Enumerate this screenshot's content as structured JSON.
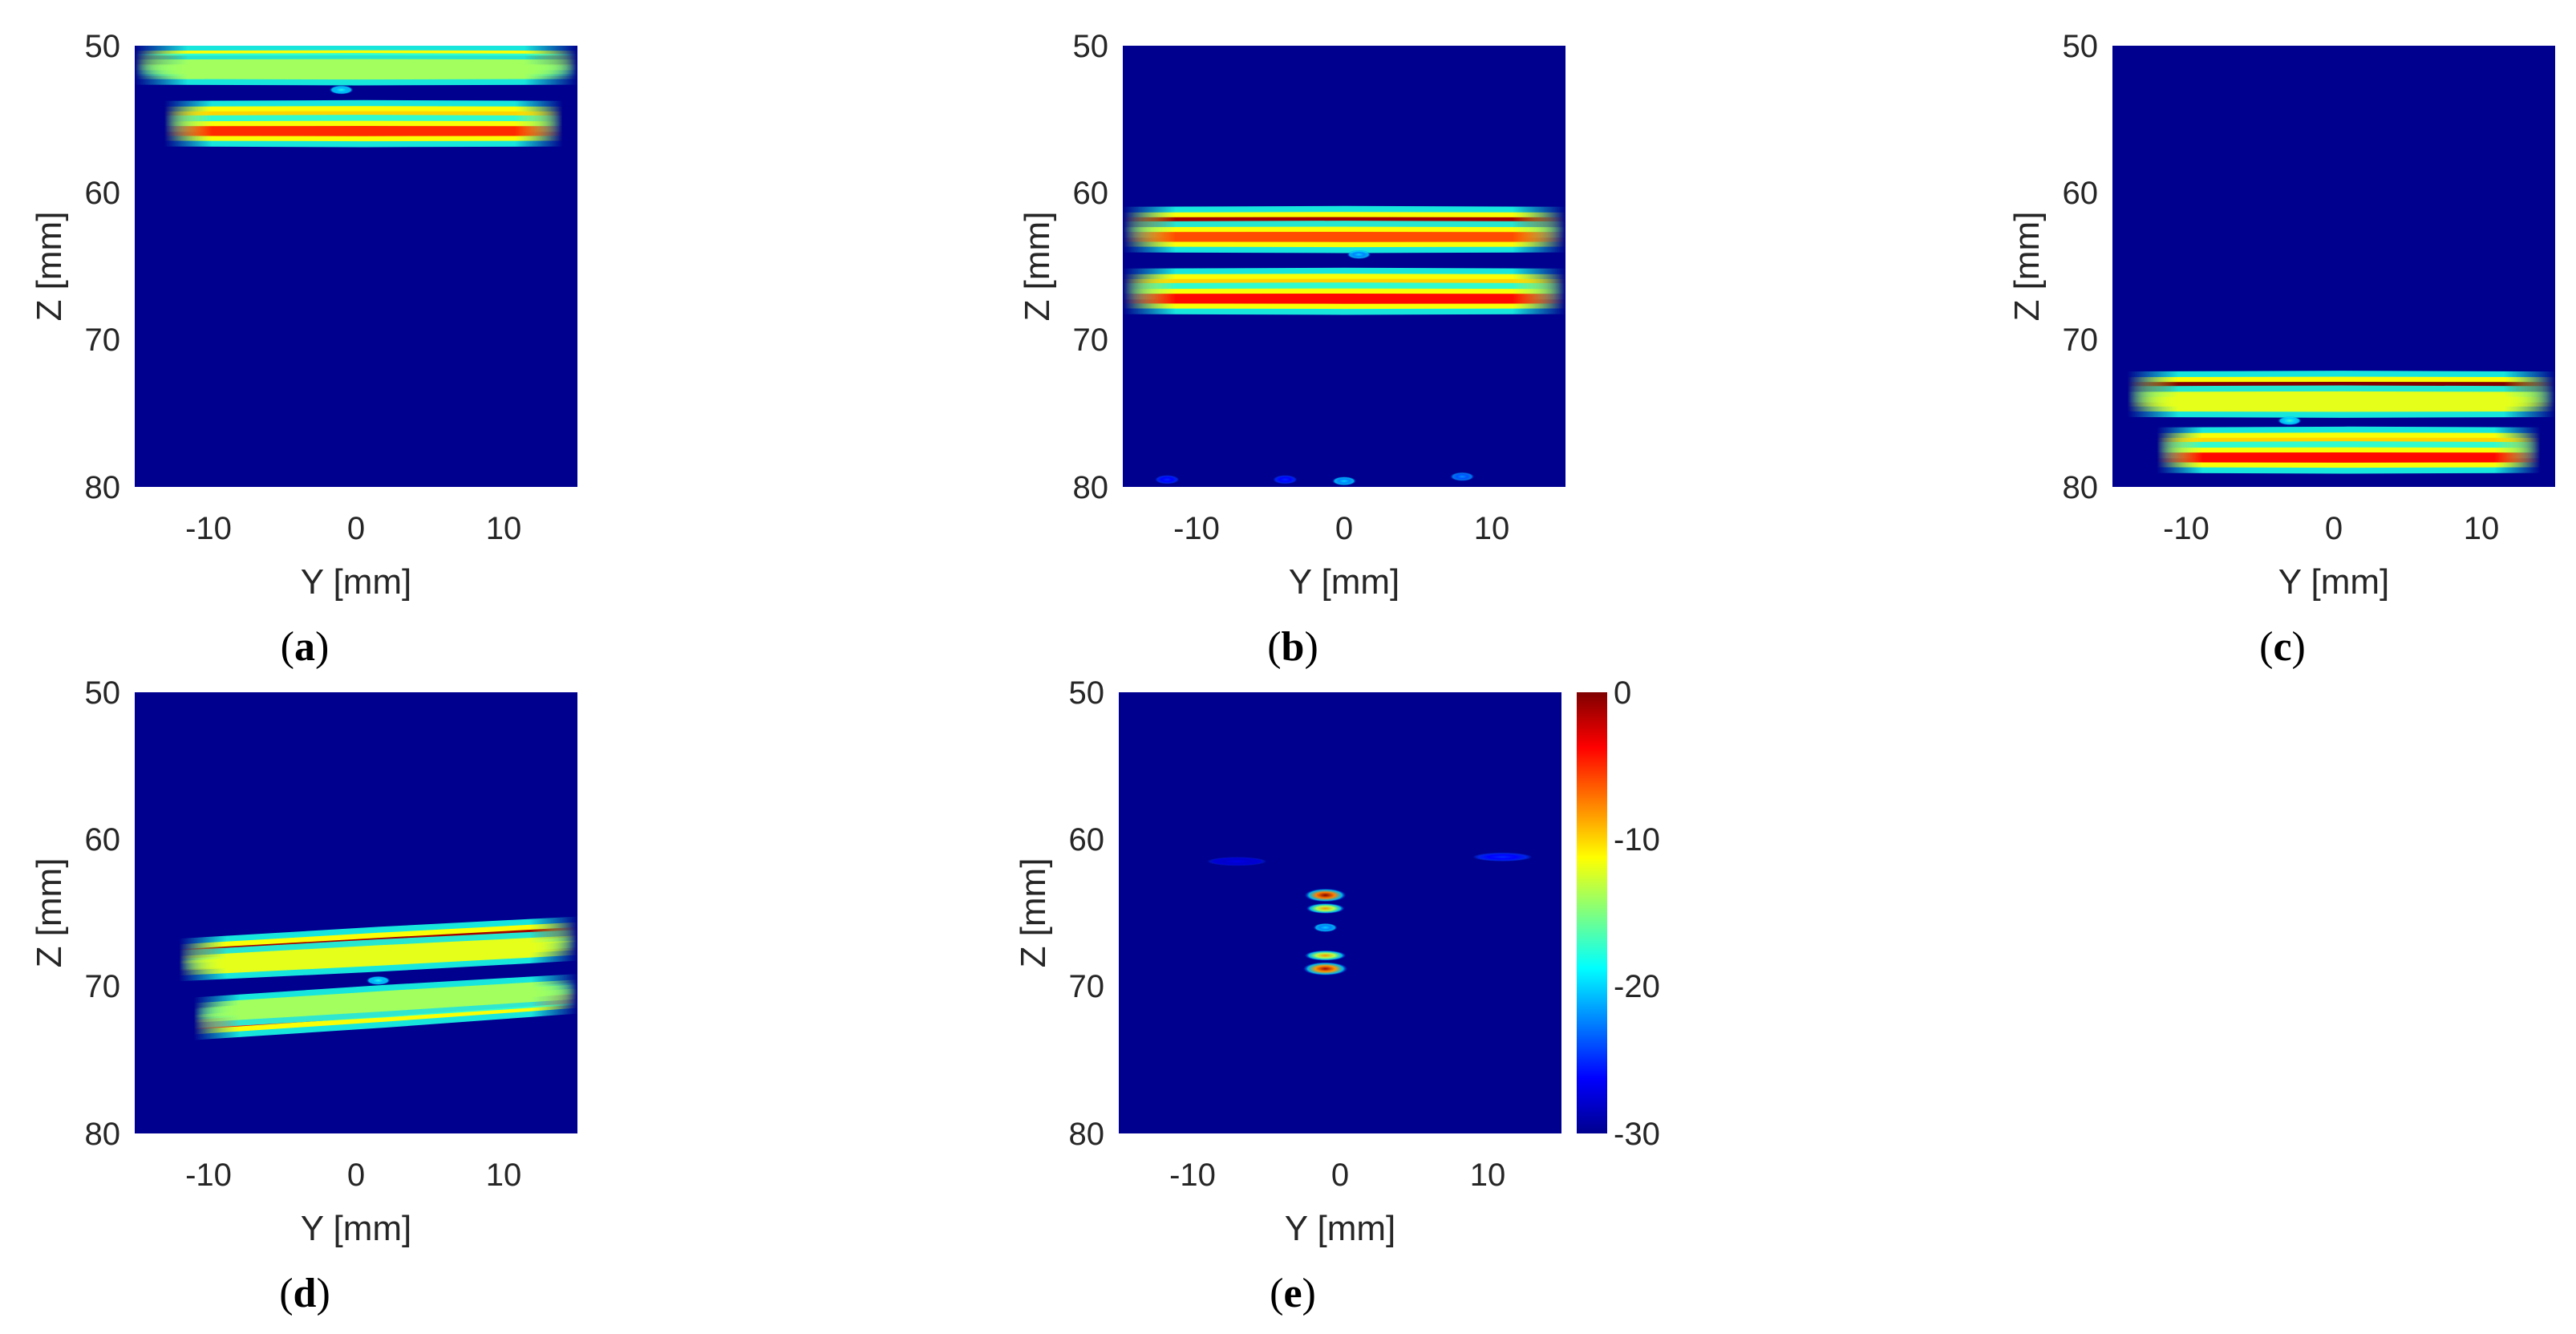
{
  "chart_data": [
    {
      "type": "heatmap",
      "caption": "a",
      "xlabel": "Y [mm]",
      "ylabel": "Z [mm]",
      "xlim": [
        -15,
        15
      ],
      "ylim": [
        50,
        80
      ],
      "y_reversed": true,
      "xticks": [
        "-10",
        "0",
        "10"
      ],
      "yticks": [
        "50",
        "60",
        "70",
        "80"
      ],
      "colormap": "jet",
      "clim_db": [
        -30,
        0
      ],
      "features": [
        {
          "shape": "band",
          "y_from": -15,
          "y_to": 15,
          "z_start": 51.0,
          "z_end": 51.0,
          "peak_db": 0
        },
        {
          "shape": "band",
          "y_from": -15,
          "y_to": 15,
          "z_start": 51.6,
          "z_end": 51.6,
          "peak_db": -14
        },
        {
          "shape": "spot",
          "y": -1,
          "z": 53.0,
          "peak_db": -18
        },
        {
          "shape": "band",
          "y_from": -13,
          "y_to": 14,
          "z_start": 54.8,
          "z_end": 54.8,
          "peak_db": -10
        },
        {
          "shape": "band",
          "y_from": -13,
          "y_to": 14,
          "z_start": 55.8,
          "z_end": 55.8,
          "peak_db": -5
        }
      ]
    },
    {
      "type": "heatmap",
      "caption": "b",
      "xlabel": "Y [mm]",
      "ylabel": "Z [mm]",
      "xlim": [
        -15,
        15
      ],
      "ylim": [
        50,
        80
      ],
      "y_reversed": true,
      "xticks": [
        "-10",
        "0",
        "10"
      ],
      "yticks": [
        "50",
        "60",
        "70",
        "80"
      ],
      "colormap": "jet",
      "clim_db": [
        -30,
        0
      ],
      "features": [
        {
          "shape": "band",
          "y_from": -15,
          "y_to": 15,
          "z_start": 62.0,
          "z_end": 62.0,
          "peak_db": -1
        },
        {
          "shape": "band",
          "y_from": -15,
          "y_to": 15,
          "z_start": 63.0,
          "z_end": 63.0,
          "peak_db": -6
        },
        {
          "shape": "spot",
          "y": 1,
          "z": 64.2,
          "peak_db": -20
        },
        {
          "shape": "band",
          "y_from": -15,
          "y_to": 15,
          "z_start": 66.2,
          "z_end": 66.2,
          "peak_db": -10
        },
        {
          "shape": "band",
          "y_from": -15,
          "y_to": 15,
          "z_start": 67.2,
          "z_end": 67.2,
          "peak_db": -4
        },
        {
          "shape": "spot",
          "y": 0,
          "z": 79.6,
          "peak_db": -20
        },
        {
          "shape": "spot",
          "y": 8,
          "z": 79.3,
          "peak_db": -22
        },
        {
          "shape": "spot",
          "y": -12,
          "z": 79.5,
          "peak_db": -25
        },
        {
          "shape": "spot",
          "y": -4,
          "z": 79.5,
          "peak_db": -25
        }
      ]
    },
    {
      "type": "heatmap",
      "caption": "c",
      "xlabel": "Y [mm]",
      "ylabel": "Z [mm]",
      "xlim": [
        -15,
        15
      ],
      "ylim": [
        50,
        80
      ],
      "y_reversed": true,
      "xticks": [
        "-10",
        "0",
        "10"
      ],
      "yticks": [
        "50",
        "60",
        "70",
        "80"
      ],
      "colormap": "jet",
      "clim_db": [
        -30,
        0
      ],
      "features": [
        {
          "shape": "band",
          "y_from": -14,
          "y_to": 15,
          "z_start": 73.2,
          "z_end": 73.2,
          "peak_db": 0
        },
        {
          "shape": "band",
          "y_from": -14,
          "y_to": 15,
          "z_start": 74.2,
          "z_end": 74.2,
          "peak_db": -12
        },
        {
          "shape": "spot",
          "y": -3,
          "z": 75.5,
          "peak_db": -17
        },
        {
          "shape": "band",
          "y_from": -12,
          "y_to": 14,
          "z_start": 77.0,
          "z_end": 77.0,
          "peak_db": -10
        },
        {
          "shape": "band",
          "y_from": -12,
          "y_to": 14,
          "z_start": 78.0,
          "z_end": 78.0,
          "peak_db": -4
        }
      ]
    },
    {
      "type": "heatmap",
      "caption": "d",
      "xlabel": "Y [mm]",
      "ylabel": "Z [mm]",
      "xlim": [
        -15,
        15
      ],
      "ylim": [
        50,
        80
      ],
      "y_reversed": true,
      "xticks": [
        "-10",
        "0",
        "10"
      ],
      "yticks": [
        "50",
        "60",
        "70",
        "80"
      ],
      "colormap": "jet",
      "clim_db": [
        -30,
        0
      ],
      "features": [
        {
          "shape": "band",
          "y_from": -12,
          "y_to": 15,
          "z_start": 67.8,
          "z_end": 66.3,
          "peak_db": -1
        },
        {
          "shape": "band",
          "y_from": -12,
          "y_to": 15,
          "z_start": 68.6,
          "z_end": 67.2,
          "peak_db": -12
        },
        {
          "shape": "spot",
          "y": 1.5,
          "z": 69.6,
          "peak_db": -18
        },
        {
          "shape": "band",
          "y_from": -11,
          "y_to": 15,
          "z_start": 72.6,
          "z_end": 70.8,
          "peak_db": -4
        },
        {
          "shape": "band",
          "y_from": -11,
          "y_to": 15,
          "z_start": 71.8,
          "z_end": 70.2,
          "peak_db": -14
        }
      ]
    },
    {
      "type": "heatmap",
      "caption": "e",
      "xlabel": "Y [mm]",
      "ylabel": "Z [mm]",
      "xlim": [
        -15,
        15
      ],
      "ylim": [
        50,
        80
      ],
      "y_reversed": true,
      "xticks": [
        "-10",
        "0",
        "10"
      ],
      "yticks": [
        "50",
        "60",
        "70",
        "80"
      ],
      "colormap": "jet",
      "clim_db": [
        -30,
        0
      ],
      "colorbar": {
        "ticks": [
          "0",
          "-10",
          "-20",
          "-30"
        ]
      },
      "features": [
        {
          "shape": "spot",
          "y": -1,
          "z": 63.8,
          "peak_db": 0,
          "wy": 1.4,
          "wz": 0.45
        },
        {
          "shape": "spot",
          "y": -1,
          "z": 64.7,
          "peak_db": -8,
          "wy": 1.3,
          "wz": 0.35
        },
        {
          "shape": "spot",
          "y": -1,
          "z": 66.0,
          "peak_db": -20,
          "wy": 0.8,
          "wz": 0.3
        },
        {
          "shape": "spot",
          "y": -1,
          "z": 67.9,
          "peak_db": -8,
          "wy": 1.4,
          "wz": 0.35
        },
        {
          "shape": "spot",
          "y": -1,
          "z": 68.8,
          "peak_db": -1,
          "wy": 1.5,
          "wz": 0.45
        },
        {
          "shape": "spot",
          "y": 11,
          "z": 61.2,
          "peak_db": -25,
          "wy": 2,
          "wz": 0.3
        },
        {
          "shape": "spot",
          "y": -7,
          "z": 61.5,
          "peak_db": -27,
          "wy": 2,
          "wz": 0.3
        }
      ]
    }
  ]
}
